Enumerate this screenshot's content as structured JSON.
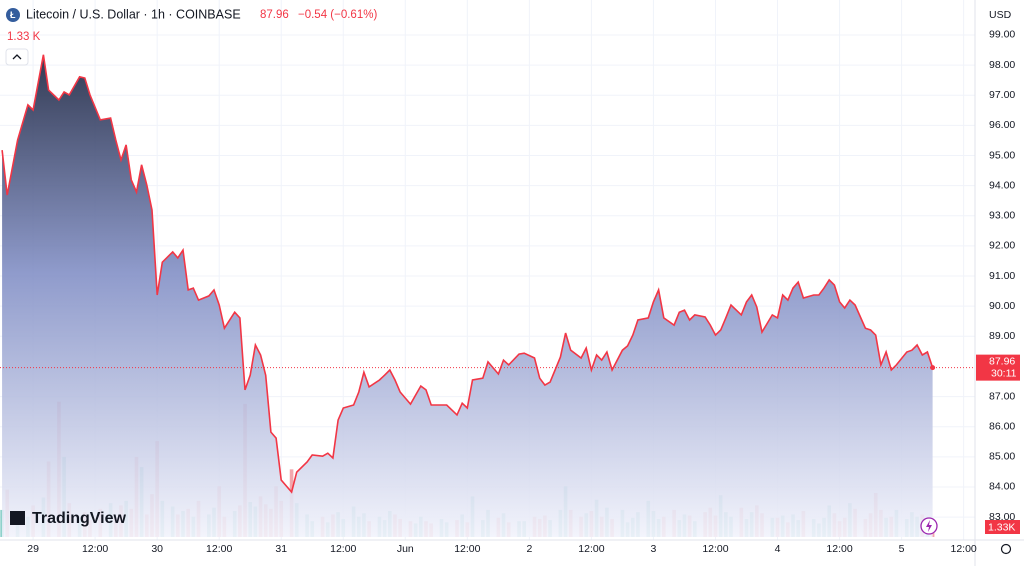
{
  "header": {
    "symbol": "Litecoin / U.S. Dollar · 1h · COINBASE",
    "change": "−0.54 (−0.61%)",
    "volume": "1.33 K"
  },
  "chart_data": {
    "type": "area",
    "currency": "USD",
    "logo": "TradingView",
    "countdown": "30:11",
    "volume_label": "1.33K",
    "color": "#f23645",
    "grid": true,
    "x": [
      -6,
      -5,
      -3,
      -1,
      0,
      2,
      3,
      5,
      6,
      7,
      9,
      10,
      11,
      13,
      15,
      16,
      17,
      18,
      19,
      20,
      21,
      22,
      23,
      24,
      25,
      27,
      28,
      29,
      30,
      31,
      32,
      34,
      35,
      36,
      37,
      39,
      40,
      41,
      42,
      43,
      44,
      45,
      46,
      47,
      48,
      50,
      51,
      53,
      54,
      56,
      57,
      58,
      59,
      60,
      62,
      63,
      64,
      65,
      67,
      68,
      69,
      70,
      71,
      73,
      74,
      75,
      76,
      77,
      79,
      80,
      82,
      83,
      84,
      85,
      87,
      88,
      90,
      91,
      92,
      94,
      95,
      97,
      98,
      99,
      100,
      102,
      103,
      104,
      106,
      107,
      108,
      109,
      110,
      111,
      112,
      114,
      115,
      116,
      117,
      119,
      120,
      121,
      122,
      124,
      125,
      126,
      127,
      128,
      130,
      131,
      132,
      133,
      134,
      135,
      137,
      138,
      139,
      140,
      141,
      143,
      144,
      145,
      146,
      147,
      148,
      149,
      151,
      152,
      153,
      154,
      155,
      156,
      157,
      158,
      159,
      161,
      162,
      163,
      164,
      165,
      166,
      167,
      169,
      170,
      171,
      172,
      173,
      174
    ],
    "values": [
      95.18,
      93.69,
      95.51,
      96.68,
      96.51,
      98.34,
      97.17,
      96.84,
      97.11,
      97.01,
      97.61,
      97.57,
      97.01,
      96.18,
      96.24,
      95.51,
      94.85,
      95.35,
      94.19,
      93.79,
      94.69,
      94.02,
      93.19,
      90.37,
      91.46,
      91.8,
      91.6,
      91.86,
      90.54,
      90.6,
      90.2,
      90.34,
      90.54,
      90.04,
      89.27,
      89.8,
      89.61,
      87.22,
      87.71,
      88.71,
      88.38,
      87.71,
      85.82,
      85.62,
      84.23,
      83.83,
      84.49,
      84.83,
      85.06,
      85.02,
      85.12,
      84.96,
      86.22,
      86.62,
      86.72,
      87.15,
      87.81,
      87.32,
      87.55,
      87.71,
      87.88,
      87.55,
      87.15,
      86.75,
      87.05,
      87.35,
      87.22,
      86.72,
      86.72,
      86.72,
      86.39,
      86.78,
      86.62,
      87.55,
      87.61,
      88.15,
      87.75,
      88.21,
      88.05,
      88.41,
      88.44,
      88.28,
      87.61,
      87.38,
      87.48,
      88.31,
      89.11,
      88.54,
      88.28,
      88.61,
      87.88,
      88.38,
      88.21,
      88.48,
      87.88,
      88.54,
      88.68,
      89.04,
      89.54,
      89.61,
      90.14,
      90.54,
      89.61,
      89.37,
      89.8,
      89.87,
      89.54,
      89.71,
      89.64,
      89.37,
      89.04,
      89.21,
      89.61,
      90.04,
      89.71,
      90.14,
      90.37,
      89.97,
      89.14,
      89.71,
      89.61,
      90.37,
      90.2,
      90.6,
      90.8,
      90.27,
      90.37,
      90.37,
      90.6,
      90.87,
      90.7,
      90.14,
      89.94,
      90.2,
      90.04,
      89.27,
      89.21,
      89.04,
      88.05,
      88.48,
      87.88,
      88.05,
      88.48,
      88.54,
      88.71,
      88.38,
      88.48,
      87.96
    ],
    "volume": {
      "up_color": "#8fd1cb",
      "down_color": "#f2a7ad",
      "values": [
        2400,
        4200,
        1500,
        1800,
        2800,
        3500,
        6700,
        12000,
        7100,
        3000,
        1800,
        2200,
        1500,
        2500,
        3000,
        1700,
        2800,
        3200,
        2500,
        7100,
        6200,
        2000,
        3800,
        8500,
        3200,
        2700,
        2000,
        2300,
        2500,
        1800,
        3200,
        2000,
        2600,
        4500,
        1800,
        2300,
        2800,
        11800,
        3100,
        2700,
        3600,
        2900,
        2500,
        4500,
        3200,
        6000,
        3000,
        2000,
        1400,
        1800,
        1300,
        2000,
        2200,
        1600,
        2700,
        1800,
        2100,
        1400,
        1800,
        1500,
        2300,
        2000,
        1600,
        1400,
        1200,
        1800,
        1400,
        1200,
        1600,
        1300,
        1500,
        2000,
        1300,
        3600,
        1500,
        2400,
        1700,
        2100,
        1300,
        1400,
        1400,
        1800,
        1600,
        1900,
        1500,
        2400,
        4500,
        2400,
        1800,
        2100,
        2300,
        3300,
        1800,
        2600,
        1600,
        2400,
        1300,
        1700,
        2200,
        3200,
        2300,
        1600,
        1800,
        2400,
        1500,
        2000,
        1900,
        1400,
        2200,
        2600,
        1900,
        3700,
        2200,
        1800,
        2600,
        1600,
        2200,
        2800,
        2100,
        1700,
        1700,
        1900,
        1300,
        2000,
        1500,
        2300,
        1600,
        1200,
        1700,
        2800,
        2100,
        1400,
        1700,
        3000,
        2500,
        1600,
        2100,
        3900,
        2400,
        1700,
        1800,
        2400,
        1600,
        2200,
        1800,
        2000,
        1500,
        1330
      ]
    },
    "xlim": [
      -6.4,
      182.2
    ],
    "xticks": [
      {
        "value": 0,
        "label": "29"
      },
      {
        "value": 12,
        "label": "12:00"
      },
      {
        "value": 24,
        "label": "30"
      },
      {
        "value": 36,
        "label": "12:00"
      },
      {
        "value": 48,
        "label": "31"
      },
      {
        "value": 60,
        "label": "12:00"
      },
      {
        "value": 72,
        "label": "Jun"
      },
      {
        "value": 84,
        "label": "12:00"
      },
      {
        "value": 96,
        "label": "2"
      },
      {
        "value": 108,
        "label": "12:00"
      },
      {
        "value": 120,
        "label": "3"
      },
      {
        "value": 132,
        "label": "12:00"
      },
      {
        "value": 144,
        "label": "4"
      },
      {
        "value": 156,
        "label": "12:00"
      },
      {
        "value": 168,
        "label": "5"
      },
      {
        "value": 180,
        "label": "12:00"
      }
    ],
    "ylim": [
      82.24,
      100.16
    ],
    "yticks": [
      {
        "value": 83,
        "label": "83.00"
      },
      {
        "value": 84,
        "label": "84.00"
      },
      {
        "value": 85,
        "label": "85.00"
      },
      {
        "value": 86,
        "label": "86.00"
      },
      {
        "value": 87,
        "label": "87.00"
      },
      {
        "value": 89,
        "label": "89.00"
      },
      {
        "value": 90,
        "label": "90.00"
      },
      {
        "value": 91,
        "label": "91.00"
      },
      {
        "value": 92,
        "label": "92.00"
      },
      {
        "value": 93,
        "label": "93.00"
      },
      {
        "value": 94,
        "label": "94.00"
      },
      {
        "value": 95,
        "label": "95.00"
      },
      {
        "value": 96,
        "label": "96.00"
      },
      {
        "value": 97,
        "label": "97.00"
      },
      {
        "value": 98,
        "label": "98.00"
      },
      {
        "value": 99,
        "label": "99.00"
      }
    ]
  }
}
